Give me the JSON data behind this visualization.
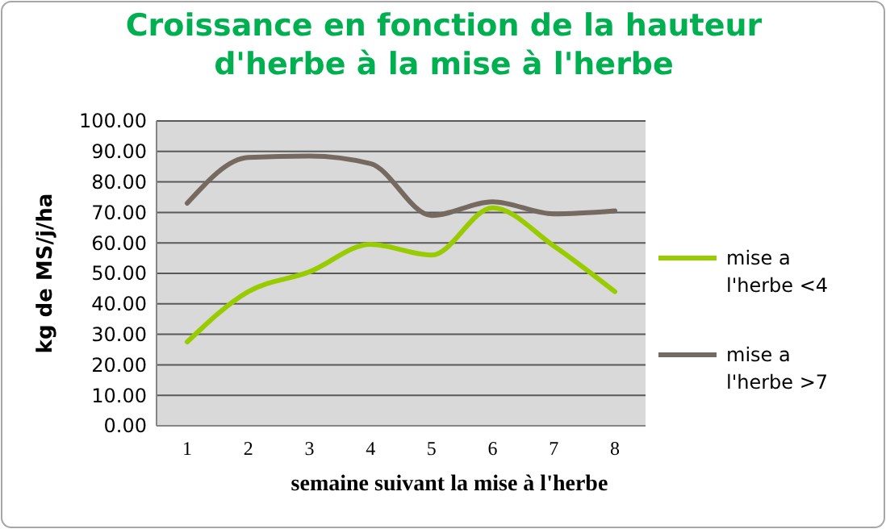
{
  "chart_data": {
    "type": "line",
    "title": "Croissance en fonction de la hauteur d'herbe à la mise à l'herbe",
    "xlabel": "semaine  suivant  la  mise  à l'herbe",
    "ylabel": "kg de MS/j/ha",
    "categories": [
      "1",
      "2",
      "3",
      "4",
      "5",
      "6",
      "7",
      "8"
    ],
    "series": [
      {
        "name": "mise a l'herbe <4",
        "color": "#99cc00",
        "values": [
          27.5,
          44,
          50.5,
          59.5,
          56,
          71.5,
          59,
          44
        ]
      },
      {
        "name": "mise a l'herbe >7",
        "color": "#76695f",
        "values": [
          73,
          88,
          88.5,
          86,
          69,
          73.5,
          69.5,
          70.5
        ]
      }
    ],
    "ylim": [
      0,
      100
    ],
    "yticks": [
      {
        "value": 0,
        "label": "0.00"
      },
      {
        "value": 10,
        "label": "10.00"
      },
      {
        "value": 20,
        "label": "20.00"
      },
      {
        "value": 30,
        "label": "30.00"
      },
      {
        "value": 40,
        "label": "40.00"
      },
      {
        "value": 50,
        "label": "50.00"
      },
      {
        "value": 60,
        "label": "60.00"
      },
      {
        "value": 70,
        "label": "70.00"
      },
      {
        "value": 80,
        "label": "80.00"
      },
      {
        "value": 90,
        "label": "90.00"
      },
      {
        "value": 100,
        "label": "100.00"
      }
    ],
    "grid": "y",
    "legend": "right",
    "marker": "none",
    "line_style": "solid"
  }
}
